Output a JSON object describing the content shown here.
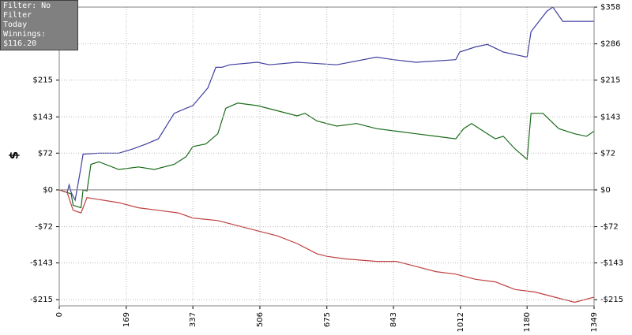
{
  "info": {
    "filter": "Filter: No Filter",
    "period": "Today",
    "winnings": "Winnings: $116.20"
  },
  "chart_data": {
    "type": "line",
    "y_label": "$",
    "xlim": [
      0,
      1349
    ],
    "xticks": [
      0,
      169,
      337,
      506,
      675,
      843,
      1012,
      1180,
      1349
    ],
    "ylim": [
      -227,
      358
    ],
    "yticks": [
      {
        "value": 358,
        "label": "$358"
      },
      {
        "value": 286,
        "label": "$286"
      },
      {
        "value": 215,
        "label": "$215"
      },
      {
        "value": 143,
        "label": "$143"
      },
      {
        "value": 72,
        "label": "$72"
      },
      {
        "value": 0,
        "label": "$0"
      },
      {
        "value": -72,
        "label": "-$72"
      },
      {
        "value": -143,
        "label": "-$143"
      },
      {
        "value": -215,
        "label": "-$215"
      }
    ],
    "grid": true,
    "series": [
      {
        "color": "#4040a0",
        "x": [
          0,
          20,
          25,
          30,
          40,
          55,
          60,
          100,
          150,
          185,
          220,
          250,
          290,
          320,
          337,
          375,
          395,
          410,
          430,
          500,
          530,
          600,
          700,
          800,
          843,
          900,
          1000,
          1010,
          1050,
          1080,
          1120,
          1150,
          1180,
          1190,
          1230,
          1245,
          1270,
          1349
        ],
        "values": [
          0,
          -5,
          10,
          -5,
          -20,
          45,
          70,
          72,
          72,
          80,
          90,
          100,
          150,
          160,
          165,
          200,
          240,
          240,
          245,
          250,
          245,
          250,
          245,
          260,
          255,
          250,
          255,
          270,
          280,
          285,
          270,
          265,
          260,
          310,
          350,
          358,
          330,
          330
        ]
      },
      {
        "color": "#1a6b1a",
        "x": [
          0,
          20,
          30,
          35,
          55,
          60,
          70,
          80,
          100,
          150,
          200,
          240,
          290,
          320,
          337,
          370,
          400,
          420,
          450,
          500,
          550,
          600,
          620,
          650,
          700,
          750,
          800,
          850,
          900,
          950,
          1000,
          1020,
          1040,
          1080,
          1100,
          1120,
          1150,
          1180,
          1190,
          1220,
          1260,
          1300,
          1330,
          1349
        ],
        "values": [
          0,
          -5,
          -8,
          -30,
          -35,
          0,
          -2,
          50,
          55,
          40,
          45,
          40,
          50,
          65,
          85,
          90,
          110,
          160,
          170,
          165,
          155,
          145,
          150,
          135,
          125,
          130,
          120,
          115,
          110,
          105,
          100,
          120,
          130,
          110,
          100,
          105,
          80,
          60,
          150,
          150,
          120,
          110,
          105,
          115
        ]
      },
      {
        "color": "#c04040",
        "x": [
          0,
          20,
          35,
          55,
          70,
          150,
          200,
          250,
          300,
          337,
          400,
          450,
          500,
          550,
          600,
          650,
          675,
          720,
          800,
          850,
          900,
          950,
          1000,
          1050,
          1100,
          1150,
          1200,
          1250,
          1300,
          1349
        ],
        "values": [
          0,
          -5,
          -40,
          -45,
          -15,
          -25,
          -35,
          -40,
          -45,
          -55,
          -60,
          -70,
          -80,
          -90,
          -105,
          -125,
          -130,
          -135,
          -140,
          -140,
          -150,
          -160,
          -165,
          -175,
          -180,
          -195,
          -200,
          -210,
          -220,
          -210
        ]
      }
    ]
  }
}
